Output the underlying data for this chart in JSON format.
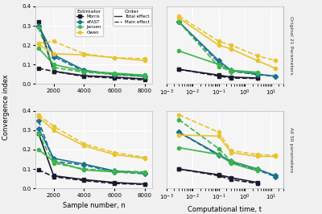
{
  "estimators": [
    "Morris",
    "eFAST",
    "Jansen",
    "Owen"
  ],
  "colors": {
    "Morris": "#1a1a2e",
    "eFAST": "#1b7090",
    "Jansen": "#3ab54a",
    "Owen": "#e8c32e"
  },
  "top_left": {
    "sample_n": [
      1000,
      2000,
      4000,
      6000,
      8000
    ],
    "Morris_total": [
      0.32,
      0.065,
      0.042,
      0.035,
      0.025
    ],
    "Morris_main": [
      0.08,
      0.065,
      0.038,
      0.03,
      0.02
    ],
    "eFAST_total": [
      0.3,
      0.15,
      0.07,
      0.05,
      0.04
    ],
    "eFAST_main": [
      0.295,
      0.14,
      0.065,
      0.048,
      0.038
    ],
    "Jansen_total": [
      0.185,
      0.1,
      0.065,
      0.055,
      0.045
    ],
    "Jansen_main": [
      0.29,
      0.085,
      0.06,
      0.05,
      0.04
    ],
    "Owen_total": [
      0.205,
      0.155,
      0.15,
      0.135,
      0.12
    ],
    "Owen_main": [
      0.21,
      0.22,
      0.155,
      0.135,
      0.13
    ]
  },
  "top_right": {
    "comp_time": [
      0.003,
      0.1,
      0.3,
      3.0,
      15.0
    ],
    "Morris_total": [
      0.075,
      0.045,
      0.035,
      0.03,
      null
    ],
    "Morris_main": [
      0.075,
      0.04,
      0.03,
      0.028,
      null
    ],
    "eFAST_total": [
      0.32,
      0.12,
      0.07,
      0.05,
      0.04
    ],
    "eFAST_main": [
      0.32,
      0.11,
      0.065,
      0.048,
      0.038
    ],
    "Jansen_total": [
      0.17,
      0.1,
      0.07,
      0.06,
      null
    ],
    "Jansen_main": [
      0.32,
      0.09,
      0.065,
      0.055,
      null
    ],
    "Owen_total": [
      0.34,
      0.2,
      0.18,
      0.12,
      0.08
    ],
    "Owen_main": [
      0.35,
      0.22,
      0.2,
      0.145,
      0.12
    ]
  },
  "bot_left": {
    "sample_n": [
      1000,
      2000,
      4000,
      6000,
      8000
    ],
    "Morris_total": [
      0.285,
      0.065,
      0.045,
      0.03,
      0.022
    ],
    "Morris_main": [
      0.095,
      0.06,
      0.04,
      0.025,
      0.02
    ],
    "eFAST_total": [
      0.31,
      0.155,
      0.125,
      0.09,
      0.08
    ],
    "eFAST_main": [
      0.35,
      0.14,
      0.12,
      0.085,
      0.075
    ],
    "Jansen_total": [
      0.2,
      0.14,
      0.095,
      0.085,
      0.08
    ],
    "Jansen_main": [
      0.285,
      0.13,
      0.1,
      0.09,
      0.085
    ],
    "Owen_total": [
      0.37,
      0.3,
      0.22,
      0.175,
      0.155
    ],
    "Owen_main": [
      0.38,
      0.32,
      0.23,
      0.185,
      0.16
    ]
  },
  "bot_right": {
    "comp_time": [
      0.003,
      0.1,
      0.3,
      3.0,
      15.0
    ],
    "Morris_total": [
      0.1,
      0.07,
      0.055,
      0.03,
      null
    ],
    "Morris_main": [
      0.1,
      0.065,
      0.045,
      0.025,
      null
    ],
    "eFAST_total": [
      0.29,
      0.175,
      0.14,
      0.1,
      0.065
    ],
    "eFAST_main": [
      0.29,
      0.17,
      0.135,
      0.095,
      0.06
    ],
    "Jansen_total": [
      0.21,
      0.175,
      0.13,
      0.09,
      null
    ],
    "Jansen_main": [
      0.355,
      0.205,
      0.14,
      0.1,
      null
    ],
    "Owen_total": [
      0.275,
      0.27,
      0.185,
      0.165,
      0.165
    ],
    "Owen_main": [
      0.38,
      0.29,
      0.195,
      0.175,
      0.17
    ]
  },
  "ylim": [
    0.0,
    0.4
  ],
  "yticks": [
    0.0,
    0.1,
    0.2,
    0.3,
    0.4
  ],
  "ylabel": "Convergence index",
  "xlabel_left": "Sample number, n",
  "xlabel_right": "Computational time, t",
  "right_label_top": "Original 21 Parameters",
  "right_label_bot": "All 50 parameters"
}
